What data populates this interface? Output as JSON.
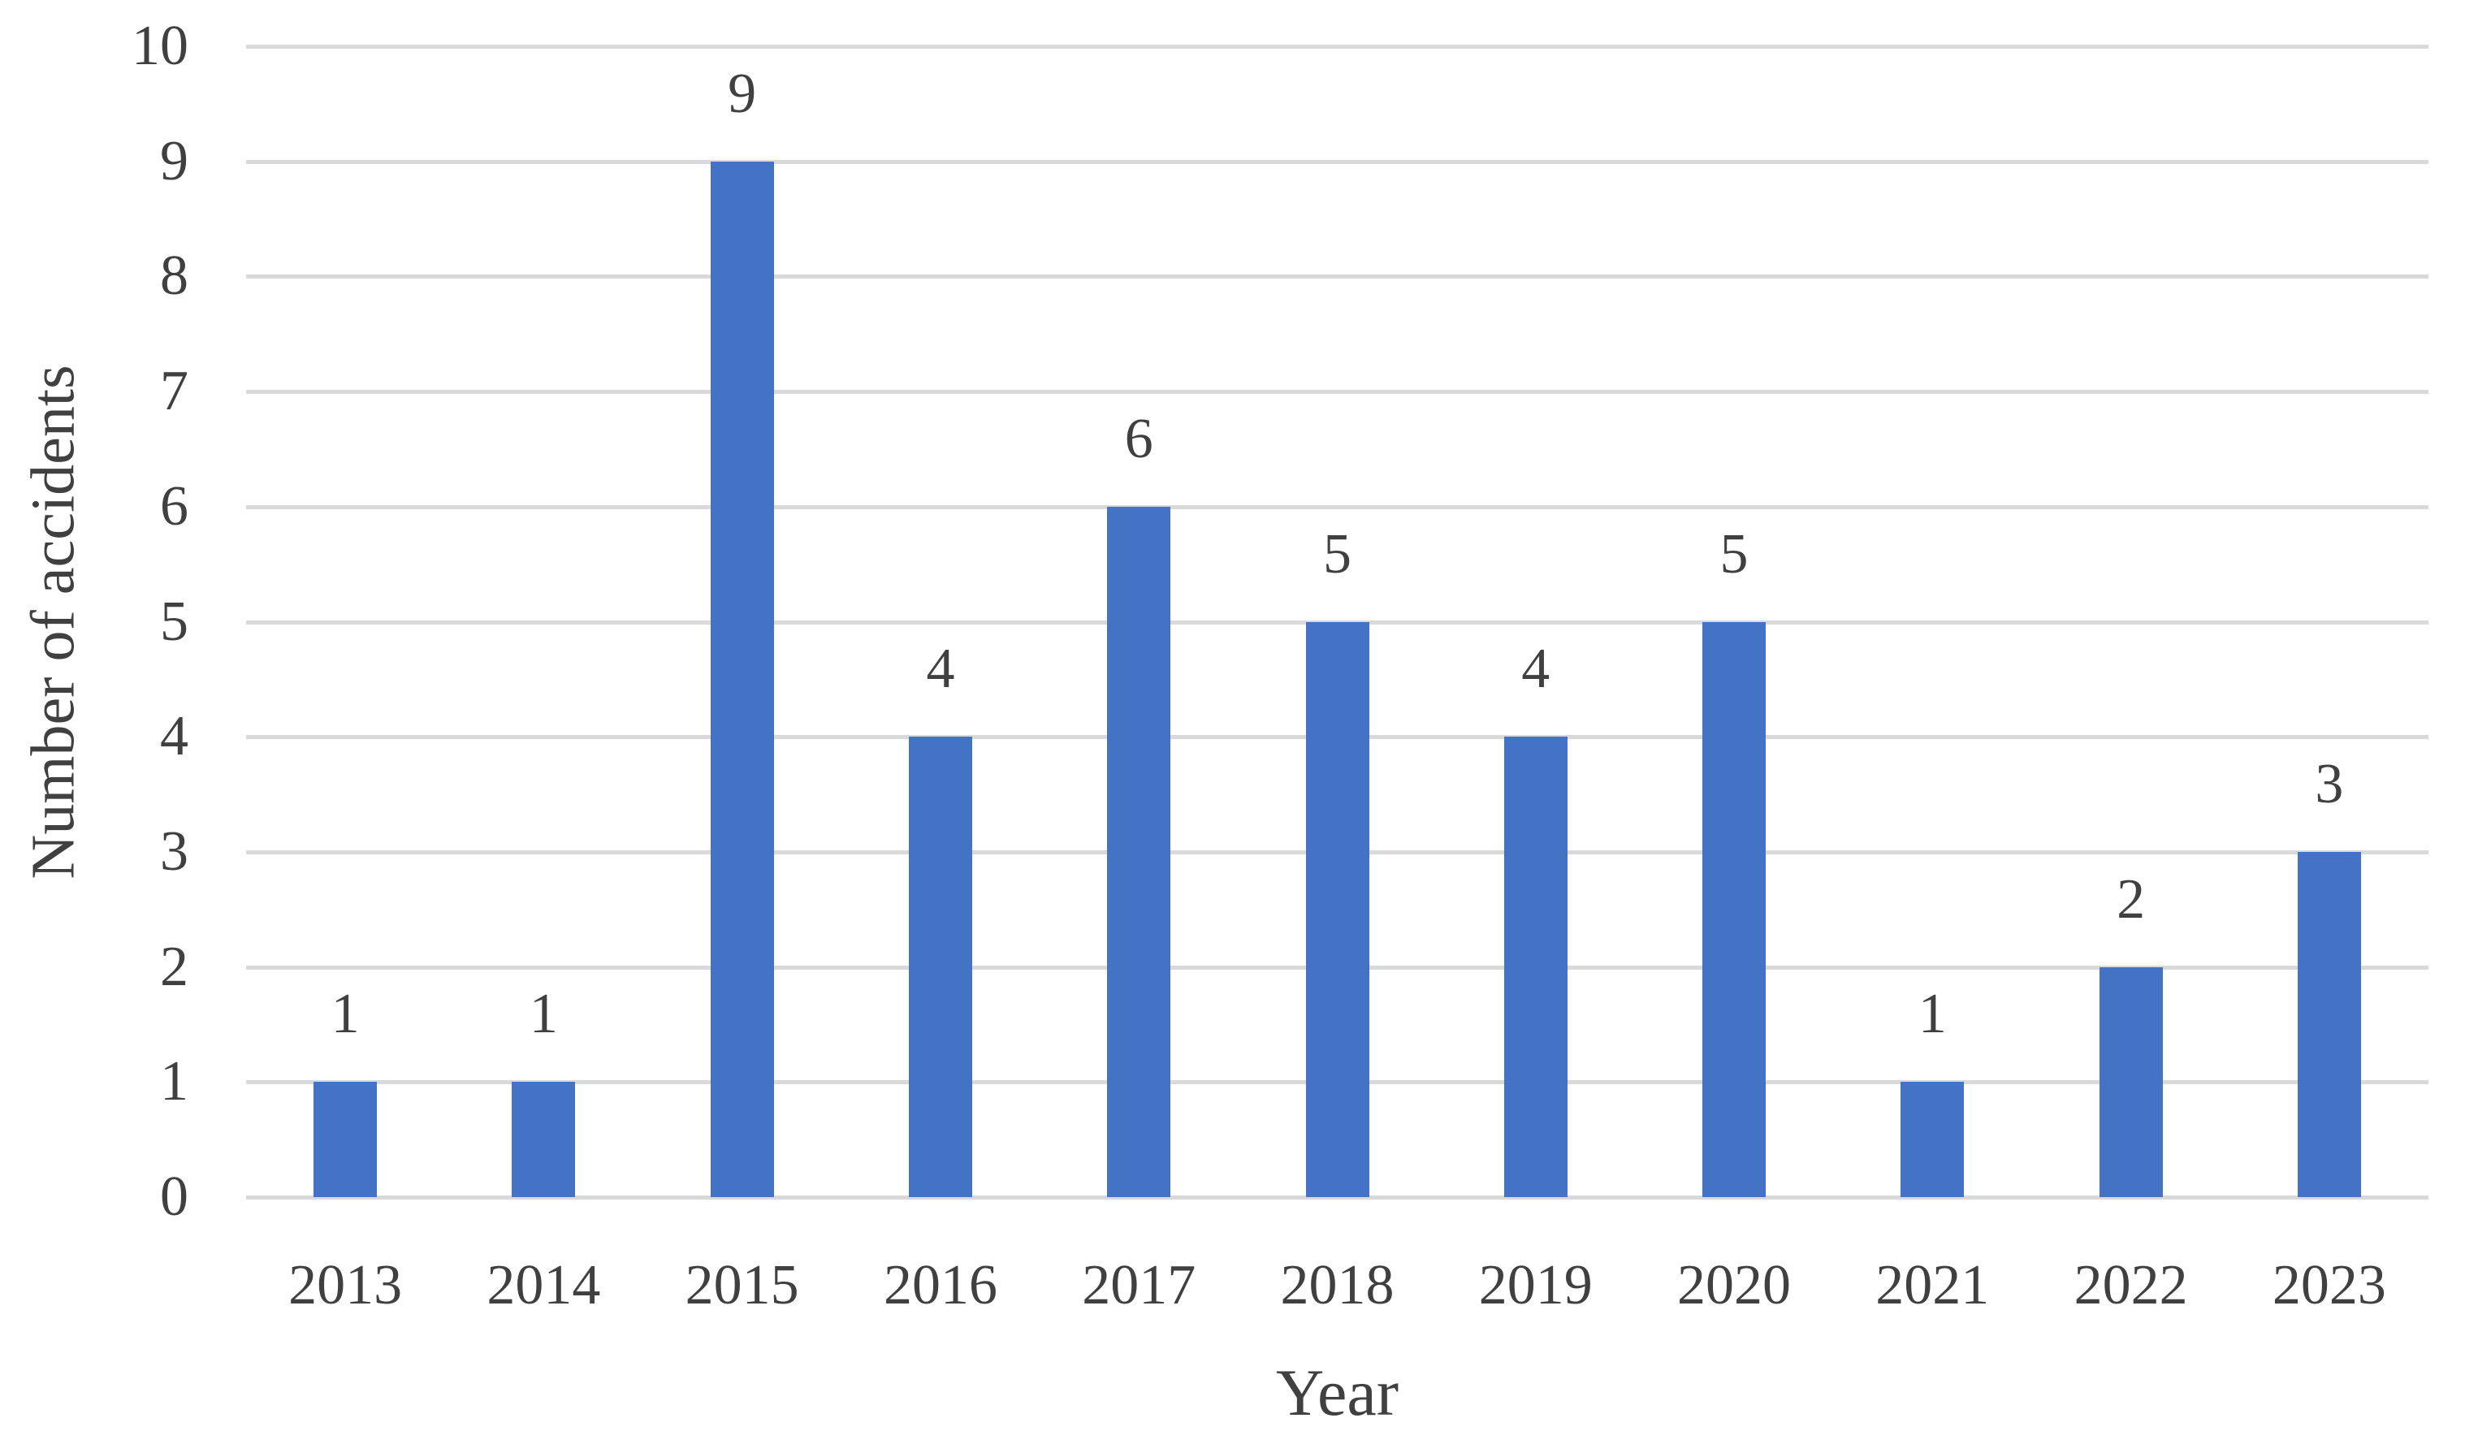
{
  "chart_data": {
    "type": "bar",
    "title": "",
    "xlabel": "Year",
    "ylabel": "Number of accidents",
    "categories": [
      "2013",
      "2014",
      "2015",
      "2016",
      "2017",
      "2018",
      "2019",
      "2020",
      "2021",
      "2022",
      "2023"
    ],
    "values": [
      1,
      1,
      9,
      4,
      6,
      5,
      4,
      5,
      1,
      2,
      3
    ],
    "data_labels": [
      "1",
      "1",
      "9",
      "4",
      "6",
      "5",
      "4",
      "5",
      "1",
      "2",
      "3"
    ],
    "yticks": [
      "0",
      "1",
      "2",
      "3",
      "4",
      "5",
      "6",
      "7",
      "8",
      "9",
      "10"
    ],
    "ylim": [
      0,
      10
    ],
    "grid": "horizontal",
    "legend": "none",
    "bar_color": "#4472C4",
    "gridline_color": "#D9D9D9",
    "text_color": "#404040",
    "background_color": "#FFFFFF"
  }
}
